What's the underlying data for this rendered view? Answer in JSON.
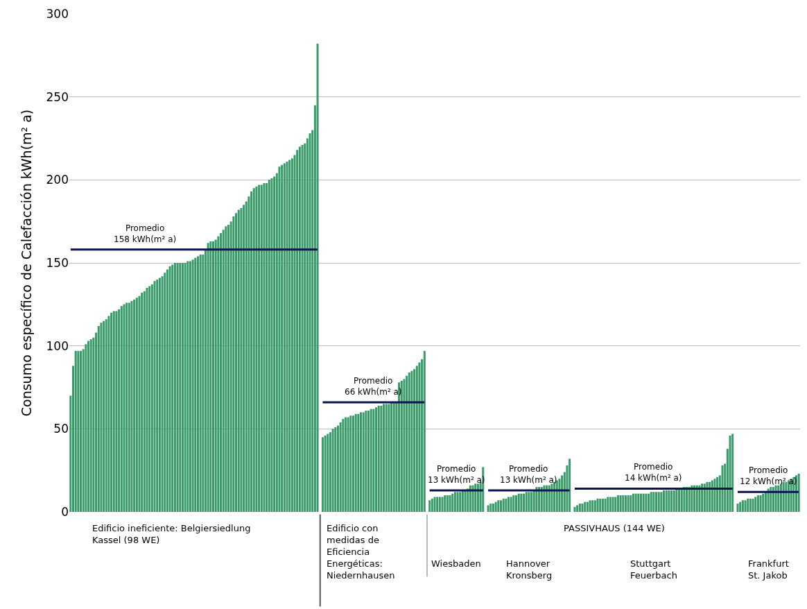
{
  "chart_data": {
    "type": "bar",
    "ylabel": "Consumo específico de Calefacción kWh(m² a)",
    "ylim": [
      0,
      300
    ],
    "yticks": [
      0,
      50,
      100,
      150,
      200,
      250,
      300
    ],
    "grid": "y",
    "tick_labels": "y",
    "categories": [
      null,
      null,
      null,
      null,
      null,
      null,
      null,
      null,
      null,
      null,
      null,
      null,
      null,
      null,
      null,
      null,
      null,
      null,
      null,
      null,
      null,
      null,
      null,
      null,
      null,
      null,
      null,
      null,
      null,
      null,
      null,
      null,
      null,
      null,
      null,
      null,
      null,
      null,
      null,
      null,
      null,
      null,
      null,
      null,
      null,
      null,
      null,
      null,
      null,
      null,
      null,
      null,
      null,
      null,
      null,
      null,
      null,
      null,
      null,
      null,
      null,
      null,
      null,
      null,
      null,
      null,
      null,
      null,
      null,
      null,
      null,
      null,
      null,
      null,
      null,
      null,
      null,
      null,
      null,
      null,
      null,
      null,
      null,
      null,
      null,
      null,
      null,
      null,
      null,
      null,
      null,
      null,
      null,
      null,
      null,
      null,
      null,
      null,
      null,
      null,
      null,
      null,
      null,
      null,
      null,
      null,
      null,
      null,
      null,
      null,
      null,
      null,
      null,
      null,
      null,
      null,
      null,
      null,
      null,
      null,
      null,
      null,
      null,
      null,
      null,
      null,
      null,
      null,
      null,
      null,
      null,
      null,
      null,
      null,
      null,
      null,
      null,
      null,
      null,
      null,
      null,
      null,
      null,
      null,
      null,
      null,
      null,
      null,
      null,
      null,
      null,
      null,
      null,
      null,
      null,
      null,
      null,
      null,
      null,
      null,
      null,
      null,
      null,
      null,
      null,
      null,
      null,
      null,
      null,
      null,
      null,
      null,
      null,
      null,
      null,
      null,
      null,
      null,
      null,
      null,
      null,
      null,
      null,
      null,
      null,
      null,
      null,
      null,
      null,
      null,
      null,
      null,
      null,
      null,
      null,
      null,
      null,
      null,
      null,
      null,
      null,
      null,
      null,
      null,
      null,
      null,
      null,
      null,
      null,
      null,
      null,
      null,
      null,
      null,
      null,
      null,
      null,
      null,
      null,
      null,
      null,
      null,
      null,
      null,
      null,
      null,
      null,
      null,
      null,
      null,
      null,
      null,
      null,
      null,
      null,
      null,
      null,
      null,
      null,
      null,
      null,
      null,
      null,
      null,
      null,
      null,
      null,
      null,
      null,
      null,
      null,
      null,
      null,
      null,
      null,
      null,
      null,
      null,
      null,
      null,
      null,
      null,
      null,
      null,
      null,
      null,
      null,
      null,
      null,
      null,
      null,
      null,
      null,
      null,
      null,
      null,
      null,
      null,
      null,
      null,
      null,
      null,
      null,
      null,
      null,
      null,
      null
    ],
    "series": [
      {
        "color": "#3a9a6a",
        "values": [
          70,
          88,
          97,
          97,
          97,
          98,
          101,
          103,
          104,
          105,
          108,
          112,
          114,
          115,
          116,
          118,
          120,
          121,
          121,
          122,
          124,
          125,
          126,
          126,
          127,
          128,
          129,
          130,
          132,
          133,
          135,
          136,
          137,
          139,
          140,
          141,
          142,
          144,
          146,
          148,
          149,
          150,
          150,
          150,
          150,
          150,
          151,
          151,
          152,
          153,
          154,
          155,
          155,
          158,
          162,
          163,
          163,
          164,
          166,
          168,
          170,
          172,
          173,
          175,
          178,
          180,
          182,
          183,
          185,
          187,
          190,
          193,
          195,
          196,
          197,
          197,
          198,
          198,
          200,
          201,
          202,
          204,
          208,
          209,
          210,
          211,
          212,
          213,
          215,
          218,
          220,
          221,
          222,
          225,
          228,
          230,
          245,
          282,
          null,
          45,
          46,
          47,
          48,
          50,
          51,
          52,
          54,
          56,
          57,
          57,
          58,
          58,
          59,
          59,
          60,
          60,
          61,
          61,
          62,
          62,
          63,
          64,
          64,
          65,
          65,
          65,
          66,
          66,
          66,
          78,
          79,
          80,
          82,
          84,
          85,
          86,
          88,
          90,
          92,
          97,
          null,
          7,
          8,
          9,
          9,
          9,
          9,
          10,
          10,
          10,
          11,
          12,
          12,
          12,
          13,
          13,
          14,
          16,
          16,
          17,
          17,
          18,
          27,
          null,
          4,
          5,
          5,
          6,
          7,
          7,
          8,
          8,
          9,
          9,
          10,
          10,
          11,
          11,
          11,
          12,
          12,
          12,
          13,
          15,
          15,
          15,
          16,
          16,
          16,
          17,
          18,
          19,
          20,
          22,
          24,
          28,
          32,
          null,
          3,
          4,
          5,
          5,
          6,
          6,
          7,
          7,
          7,
          8,
          8,
          8,
          8,
          9,
          9,
          9,
          9,
          10,
          10,
          10,
          10,
          10,
          10,
          11,
          11,
          11,
          11,
          11,
          11,
          11,
          12,
          12,
          12,
          12,
          12,
          13,
          13,
          13,
          13,
          13,
          14,
          14,
          14,
          15,
          15,
          15,
          16,
          16,
          16,
          16,
          17,
          17,
          18,
          18,
          19,
          20,
          21,
          22,
          28,
          29,
          38,
          46,
          47,
          null,
          5,
          6,
          7,
          7,
          8,
          8,
          8,
          9,
          10,
          10,
          11,
          12,
          14,
          15,
          15,
          16,
          16,
          17,
          18,
          18,
          19,
          20,
          21,
          22,
          23
        ]
      },
      {
        "type": "line",
        "name": "Promedio 158 kWh(m² a)",
        "color": "#0d1350",
        "values": [
          158,
          158,
          158,
          158,
          158,
          158,
          158,
          158,
          158,
          158,
          158,
          158,
          158,
          158,
          158,
          158,
          158,
          158,
          158,
          158,
          158,
          158,
          158,
          158,
          158,
          158,
          158,
          158,
          158,
          158,
          158,
          158,
          158,
          158,
          158,
          158,
          158,
          158,
          158,
          158,
          158,
          158,
          158,
          158,
          158,
          158,
          158,
          158,
          158,
          158,
          158,
          158,
          158,
          158,
          158,
          158,
          158,
          158,
          158,
          158,
          158,
          158,
          158,
          158,
          158,
          158,
          158,
          158,
          158,
          158,
          158,
          158,
          158,
          158,
          158,
          158,
          158,
          158,
          158,
          158,
          158,
          158,
          158,
          158,
          158,
          158,
          158,
          158,
          158,
          158,
          158,
          158,
          158,
          158,
          158,
          158,
          158,
          158,
          null,
          null,
          null,
          null,
          null,
          null,
          null,
          null,
          null,
          null,
          null,
          null,
          null,
          null,
          null,
          null,
          null,
          null,
          null,
          null,
          null,
          null,
          null,
          null,
          null,
          null,
          null,
          null,
          null,
          null,
          null,
          null,
          null,
          null,
          null,
          null,
          null,
          null,
          null,
          null,
          null,
          null,
          null,
          null,
          null,
          null,
          null,
          null,
          null,
          null,
          null,
          null,
          null,
          null,
          null,
          null,
          null,
          null,
          null,
          null,
          null,
          null,
          null,
          null,
          null,
          null,
          null,
          null,
          null,
          null,
          null,
          null,
          null,
          null,
          null,
          null,
          null,
          null,
          null,
          null,
          null,
          null,
          null,
          null,
          null,
          null,
          null,
          null,
          null,
          null,
          null,
          null,
          null,
          null,
          null,
          null,
          null,
          null,
          null,
          null,
          null,
          null,
          null,
          null,
          null,
          null,
          null,
          null,
          null,
          null,
          null,
          null,
          null,
          null,
          null,
          null,
          null,
          null,
          null,
          null,
          null,
          null,
          null,
          null,
          null,
          null,
          null,
          null,
          null,
          null,
          null,
          null,
          null,
          null,
          null,
          null,
          null,
          null,
          null,
          null,
          null,
          null,
          null,
          null,
          null,
          null,
          null,
          null,
          null,
          null,
          null,
          null,
          null,
          null,
          null,
          null,
          null,
          null,
          null,
          null,
          null,
          null,
          null,
          null,
          null,
          null,
          null,
          null,
          null,
          null,
          null,
          null,
          null,
          null,
          null,
          null,
          null,
          null,
          null,
          null,
          null,
          null,
          null,
          null,
          null,
          null,
          null,
          null,
          null
        ]
      },
      {
        "type": "line",
        "name": "Promedio 66 kWh(m² a)",
        "color": "#0d1350",
        "values": [
          null,
          null,
          null,
          null,
          null,
          null,
          null,
          null,
          null,
          null,
          null,
          null,
          null,
          null,
          null,
          null,
          null,
          null,
          null,
          null,
          null,
          null,
          null,
          null,
          null,
          null,
          null,
          null,
          null,
          null,
          null,
          null,
          null,
          null,
          null,
          null,
          null,
          null,
          null,
          null,
          null,
          null,
          null,
          null,
          null,
          null,
          null,
          null,
          null,
          null,
          null,
          null,
          null,
          null,
          null,
          null,
          null,
          null,
          null,
          null,
          null,
          null,
          null,
          null,
          null,
          null,
          null,
          null,
          null,
          null,
          null,
          null,
          null,
          null,
          null,
          null,
          null,
          null,
          null,
          null,
          null,
          null,
          null,
          null,
          null,
          null,
          null,
          null,
          null,
          null,
          null,
          null,
          null,
          null,
          null,
          null,
          null,
          null,
          null,
          66,
          66,
          66,
          66,
          66,
          66,
          66,
          66,
          66,
          66,
          66,
          66,
          66,
          66,
          66,
          66,
          66,
          66,
          66,
          66,
          66,
          66,
          66,
          66,
          66,
          66,
          66,
          66,
          66,
          66,
          66,
          66,
          66,
          66,
          66,
          66,
          66,
          66,
          66,
          66,
          66,
          null,
          null,
          null,
          null,
          null,
          null,
          null,
          null,
          null,
          null,
          null,
          null,
          null,
          null,
          null,
          null,
          null,
          null,
          null,
          null,
          null,
          null,
          null,
          null,
          null,
          null,
          null,
          null,
          null,
          null,
          null,
          null,
          null,
          null,
          null,
          null,
          null,
          null,
          null,
          null,
          null,
          null,
          null,
          null,
          null,
          null,
          null,
          null,
          null,
          null,
          null,
          null,
          null,
          null,
          null,
          null,
          null,
          null,
          null,
          null,
          null,
          null,
          null,
          null,
          null,
          null,
          null,
          null,
          null,
          null,
          null,
          null,
          null,
          null,
          null,
          null,
          null,
          null,
          null,
          null,
          null,
          null,
          null,
          null,
          null,
          null,
          null,
          null,
          null,
          null,
          null,
          null,
          null,
          null,
          null,
          null,
          null,
          null,
          null,
          null,
          null,
          null,
          null,
          null,
          null,
          null,
          null,
          null,
          null,
          null,
          null,
          null,
          null,
          null,
          null,
          null,
          null,
          null,
          null,
          null,
          null,
          null,
          null,
          null,
          null,
          null,
          null,
          null,
          null,
          null,
          null,
          null,
          null,
          null,
          null,
          null,
          null,
          null,
          null,
          null,
          null,
          null,
          null,
          null,
          null,
          null,
          null
        ]
      },
      {
        "type": "line",
        "name": "Promedio 13 kWh(m² a)",
        "color": "#0d1350",
        "values": [
          null,
          null,
          null,
          null,
          null,
          null,
          null,
          null,
          null,
          null,
          null,
          null,
          null,
          null,
          null,
          null,
          null,
          null,
          null,
          null,
          null,
          null,
          null,
          null,
          null,
          null,
          null,
          null,
          null,
          null,
          null,
          null,
          null,
          null,
          null,
          null,
          null,
          null,
          null,
          null,
          null,
          null,
          null,
          null,
          null,
          null,
          null,
          null,
          null,
          null,
          null,
          null,
          null,
          null,
          null,
          null,
          null,
          null,
          null,
          null,
          null,
          null,
          null,
          null,
          null,
          null,
          null,
          null,
          null,
          null,
          null,
          null,
          null,
          null,
          null,
          null,
          null,
          null,
          null,
          null,
          null,
          null,
          null,
          null,
          null,
          null,
          null,
          null,
          null,
          null,
          null,
          null,
          null,
          null,
          null,
          null,
          null,
          null,
          null,
          null,
          null,
          null,
          null,
          null,
          null,
          null,
          null,
          null,
          null,
          null,
          null,
          null,
          null,
          null,
          null,
          null,
          null,
          null,
          null,
          null,
          null,
          null,
          null,
          null,
          null,
          null,
          null,
          null,
          null,
          null,
          null,
          null,
          null,
          null,
          null,
          null,
          null,
          null,
          null,
          null,
          null,
          13,
          13,
          13,
          13,
          13,
          13,
          13,
          13,
          13,
          13,
          13,
          13,
          13,
          13,
          13,
          13,
          13,
          13,
          13,
          13,
          13,
          13,
          null,
          null,
          null,
          null,
          null,
          null,
          null,
          null,
          null,
          null,
          null,
          null,
          null,
          null,
          null,
          null,
          null,
          null,
          null,
          null,
          null,
          null,
          null,
          null,
          null,
          null,
          null,
          null,
          null,
          null,
          null,
          null,
          null,
          null,
          null,
          null,
          null,
          null,
          null,
          null,
          null,
          null,
          null,
          null,
          null,
          null,
          null,
          null,
          null,
          null,
          null,
          null,
          null,
          null,
          null,
          null,
          null,
          null,
          null,
          null,
          null,
          null,
          null,
          null,
          null,
          null,
          null,
          null,
          null,
          null,
          null,
          null,
          null,
          null,
          null,
          null,
          null,
          null,
          null,
          null,
          null,
          null,
          null,
          null,
          null,
          null,
          null,
          null,
          null,
          null,
          null,
          null,
          null,
          null,
          null,
          null,
          null,
          null,
          null,
          null,
          null,
          null,
          null,
          null,
          null,
          null,
          null,
          null,
          null,
          null,
          null,
          null,
          null,
          null,
          null,
          null,
          null,
          null,
          null,
          null,
          null,
          null,
          null,
          null
        ]
      },
      {
        "type": "line",
        "name": "Promedio 13 kWh(m² a)",
        "color": "#0d1350",
        "values": [
          null,
          null,
          null,
          null,
          null,
          null,
          null,
          null,
          null,
          null,
          null,
          null,
          null,
          null,
          null,
          null,
          null,
          null,
          null,
          null,
          null,
          null,
          null,
          null,
          null,
          null,
          null,
          null,
          null,
          null,
          null,
          null,
          null,
          null,
          null,
          null,
          null,
          null,
          null,
          null,
          null,
          null,
          null,
          null,
          null,
          null,
          null,
          null,
          null,
          null,
          null,
          null,
          null,
          null,
          null,
          null,
          null,
          null,
          null,
          null,
          null,
          null,
          null,
          null,
          null,
          null,
          null,
          null,
          null,
          null,
          null,
          null,
          null,
          null,
          null,
          null,
          null,
          null,
          null,
          null,
          null,
          null,
          null,
          null,
          null,
          null,
          null,
          null,
          null,
          null,
          null,
          null,
          null,
          null,
          null,
          null,
          null,
          null,
          null,
          null,
          null,
          null,
          null,
          null,
          null,
          null,
          null,
          null,
          null,
          null,
          null,
          null,
          null,
          null,
          null,
          null,
          null,
          null,
          null,
          null,
          null,
          null,
          null,
          null,
          null,
          null,
          null,
          null,
          null,
          null,
          null,
          null,
          null,
          null,
          null,
          null,
          null,
          null,
          null,
          null,
          null,
          null,
          null,
          null,
          null,
          null,
          null,
          null,
          null,
          null,
          null,
          null,
          null,
          null,
          null,
          null,
          null,
          null,
          null,
          null,
          null,
          null,
          null,
          null,
          13,
          13,
          13,
          13,
          13,
          13,
          13,
          13,
          13,
          13,
          13,
          13,
          13,
          13,
          13,
          13,
          13,
          13,
          13,
          13,
          13,
          13,
          13,
          13,
          13,
          13,
          13,
          13,
          13,
          13,
          13,
          13,
          13,
          null,
          null,
          null,
          null,
          null,
          null,
          null,
          null,
          null,
          null,
          null,
          null,
          null,
          null,
          null,
          null,
          null,
          null,
          null,
          null,
          null,
          null,
          null,
          null,
          null,
          null,
          null,
          null,
          null,
          null,
          null,
          null,
          null,
          null,
          null,
          null,
          null,
          null,
          null,
          null,
          null,
          null,
          null,
          null,
          null,
          null,
          null,
          null,
          null,
          null,
          null,
          null,
          null,
          null,
          null,
          null,
          null,
          null,
          null,
          null,
          null,
          null,
          null,
          null,
          null,
          null,
          null,
          null,
          null,
          null,
          null,
          null,
          null,
          null,
          null,
          null,
          null,
          null,
          null,
          null,
          null,
          null,
          null,
          null,
          null,
          null,
          null,
          null,
          null,
          null
        ]
      },
      {
        "type": "line",
        "name": "Promedio 14 kWh(m² a)",
        "color": "#0d1350",
        "values": [
          null,
          null,
          null,
          null,
          null,
          null,
          null,
          null,
          null,
          null,
          null,
          null,
          null,
          null,
          null,
          null,
          null,
          null,
          null,
          null,
          null,
          null,
          null,
          null,
          null,
          null,
          null,
          null,
          null,
          null,
          null,
          null,
          null,
          null,
          null,
          null,
          null,
          null,
          null,
          null,
          null,
          null,
          null,
          null,
          null,
          null,
          null,
          null,
          null,
          null,
          null,
          null,
          null,
          null,
          null,
          null,
          null,
          null,
          null,
          null,
          null,
          null,
          null,
          null,
          null,
          null,
          null,
          null,
          null,
          null,
          null,
          null,
          null,
          null,
          null,
          null,
          null,
          null,
          null,
          null,
          null,
          null,
          null,
          null,
          null,
          null,
          null,
          null,
          null,
          null,
          null,
          null,
          null,
          null,
          null,
          null,
          null,
          null,
          null,
          null,
          null,
          null,
          null,
          null,
          null,
          null,
          null,
          null,
          null,
          null,
          null,
          null,
          null,
          null,
          null,
          null,
          null,
          null,
          null,
          null,
          null,
          null,
          null,
          null,
          null,
          null,
          null,
          null,
          null,
          null,
          null,
          null,
          null,
          null,
          null,
          null,
          null,
          null,
          null,
          null,
          null,
          null,
          null,
          null,
          null,
          null,
          null,
          null,
          null,
          null,
          null,
          null,
          null,
          null,
          null,
          null,
          null,
          null,
          null,
          null,
          null,
          null,
          null,
          null,
          null,
          null,
          null,
          null,
          null,
          null,
          null,
          null,
          null,
          null,
          null,
          null,
          null,
          null,
          null,
          null,
          null,
          null,
          null,
          null,
          null,
          null,
          null,
          null,
          null,
          null,
          null,
          null,
          null,
          null,
          null,
          null,
          null,
          null,
          14,
          14,
          14,
          14,
          14,
          14,
          14,
          14,
          14,
          14,
          14,
          14,
          14,
          14,
          14,
          14,
          14,
          14,
          14,
          14,
          14,
          14,
          14,
          14,
          14,
          14,
          14,
          14,
          14,
          14,
          14,
          14,
          14,
          14,
          14,
          14,
          14,
          14,
          14,
          14,
          14,
          14,
          14,
          14,
          14,
          14,
          14,
          14,
          14,
          14,
          14,
          14,
          14,
          14,
          14,
          14,
          14,
          14,
          14,
          14,
          14,
          14,
          14,
          null,
          null,
          null,
          null,
          null,
          null,
          null,
          null,
          null,
          null,
          null,
          null,
          null,
          null,
          null,
          null,
          null,
          null,
          null,
          null,
          null,
          null,
          null,
          null,
          null,
          null
        ]
      },
      {
        "type": "line",
        "name": "Promedio 12 kWh(m² a)",
        "color": "#0d1350",
        "values": [
          null,
          null,
          null,
          null,
          null,
          null,
          null,
          null,
          null,
          null,
          null,
          null,
          null,
          null,
          null,
          null,
          null,
          null,
          null,
          null,
          null,
          null,
          null,
          null,
          null,
          null,
          null,
          null,
          null,
          null,
          null,
          null,
          null,
          null,
          null,
          null,
          null,
          null,
          null,
          null,
          null,
          null,
          null,
          null,
          null,
          null,
          null,
          null,
          null,
          null,
          null,
          null,
          null,
          null,
          null,
          null,
          null,
          null,
          null,
          null,
          null,
          null,
          null,
          null,
          null,
          null,
          null,
          null,
          null,
          null,
          null,
          null,
          null,
          null,
          null,
          null,
          null,
          null,
          null,
          null,
          null,
          null,
          null,
          null,
          null,
          null,
          null,
          null,
          null,
          null,
          null,
          null,
          null,
          null,
          null,
          null,
          null,
          null,
          null,
          null,
          null,
          null,
          null,
          null,
          null,
          null,
          null,
          null,
          null,
          null,
          null,
          null,
          null,
          null,
          null,
          null,
          null,
          null,
          null,
          null,
          null,
          null,
          null,
          null,
          null,
          null,
          null,
          null,
          null,
          null,
          null,
          null,
          null,
          null,
          null,
          null,
          null,
          null,
          null,
          null,
          null,
          null,
          null,
          null,
          null,
          null,
          null,
          null,
          null,
          null,
          null,
          null,
          null,
          null,
          null,
          null,
          null,
          null,
          null,
          null,
          null,
          null,
          null,
          null,
          null,
          null,
          null,
          null,
          null,
          null,
          null,
          null,
          null,
          null,
          null,
          null,
          null,
          null,
          null,
          null,
          null,
          null,
          null,
          null,
          null,
          null,
          null,
          null,
          null,
          null,
          null,
          null,
          null,
          null,
          null,
          null,
          null,
          null,
          null,
          null,
          null,
          null,
          null,
          null,
          null,
          null,
          null,
          null,
          null,
          null,
          null,
          null,
          null,
          null,
          null,
          null,
          null,
          null,
          null,
          null,
          null,
          null,
          null,
          null,
          null,
          null,
          null,
          null,
          null,
          null,
          null,
          null,
          null,
          null,
          null,
          null,
          null,
          null,
          null,
          null,
          null,
          null,
          null,
          null,
          null,
          null,
          null,
          null,
          null,
          null,
          null,
          null,
          null,
          null,
          null,
          null,
          null,
          null,
          null,
          null,
          null,
          null,
          12,
          12,
          12,
          12,
          12,
          12,
          12,
          12,
          12,
          12,
          12,
          12,
          12,
          12,
          12,
          12,
          12,
          12,
          12,
          12,
          12,
          12,
          12,
          12,
          12
        ]
      }
    ],
    "annotations": [
      "Edificio ineficiente: Belgiersiedlung\nKassel (98 WE)",
      "Edificio con\nmedidas de\nEficiencia\nEnergéticas:\nNiedernhausen",
      "PASSIVHAUS (144 WE)",
      "Wiesbaden",
      "Hannover\nKronsberg",
      "Stuttgart\nFeuerbach",
      "Frankfurt\nSt. Jakob"
    ]
  }
}
